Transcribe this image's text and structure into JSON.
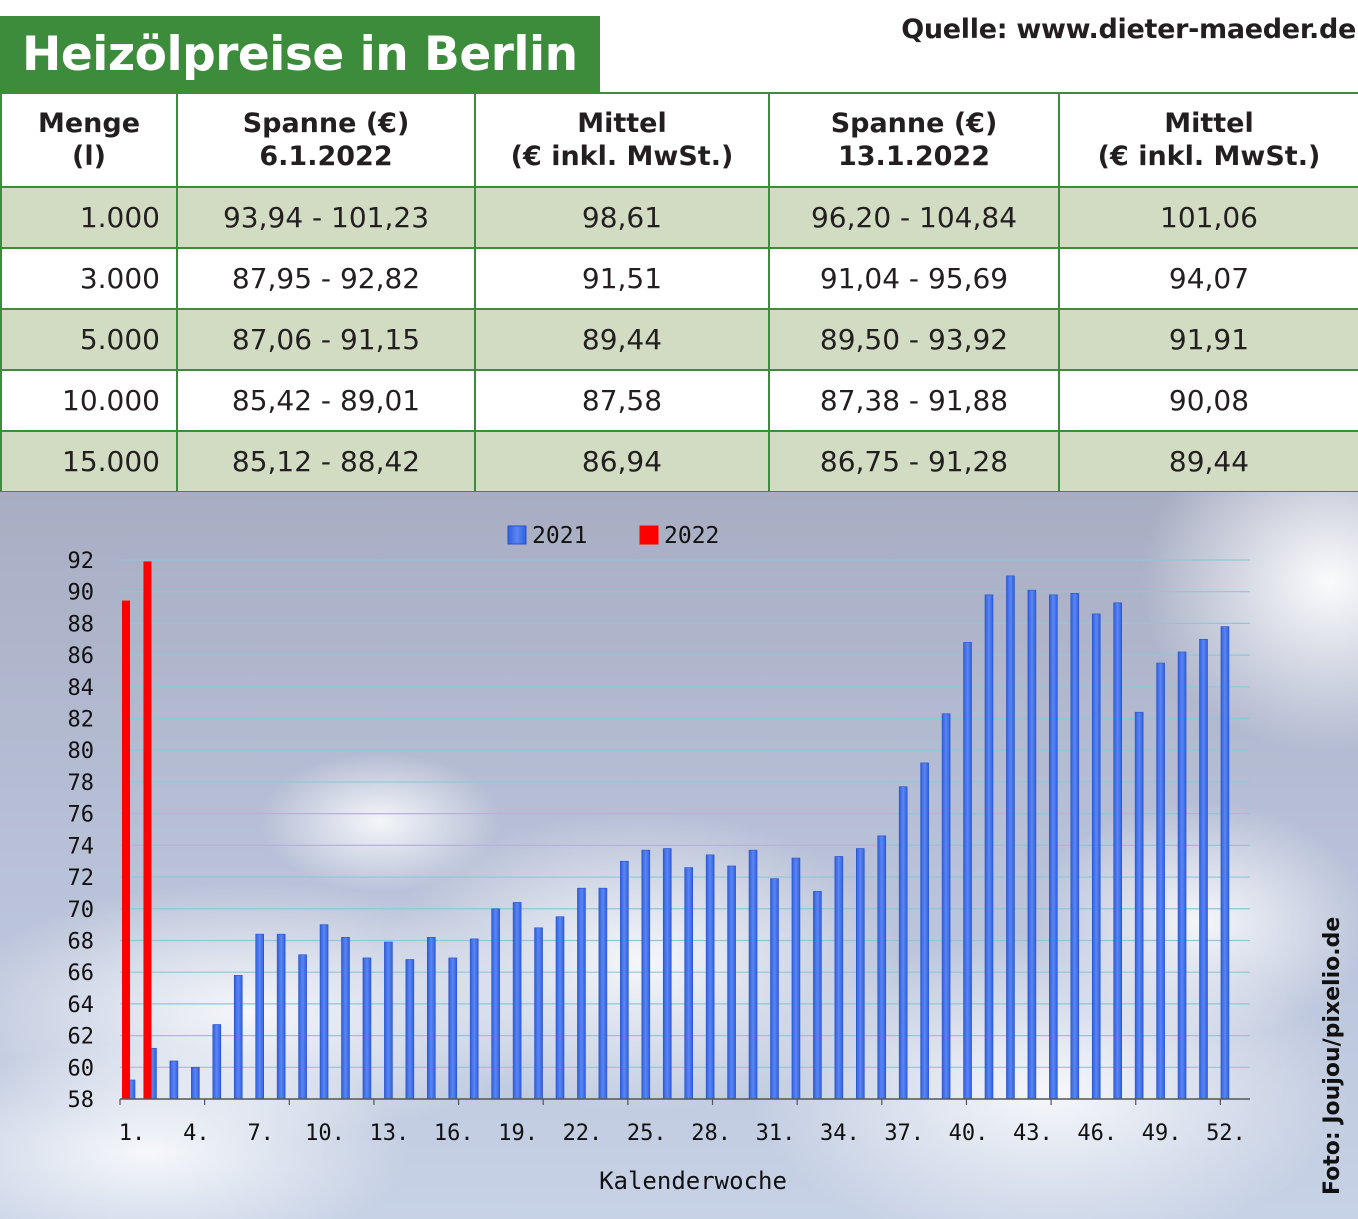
{
  "header": {
    "title": "Heizölpreise in Berlin",
    "source": "Quelle: www.dieter-maeder.de"
  },
  "table": {
    "columns": [
      {
        "line1": "Menge",
        "line2": "(l)"
      },
      {
        "line1": "Spanne (€)",
        "line2": "6.1.2022"
      },
      {
        "line1": "Mittel",
        "line2": "(€ inkl. MwSt.)"
      },
      {
        "line1": "Spanne (€)",
        "line2": "13.1.2022"
      },
      {
        "line1": "Mittel",
        "line2": "(€ inkl. MwSt.)"
      }
    ],
    "rows": [
      [
        "1.000",
        "93,94 - 101,23",
        "98,61",
        "96,20 - 104,84",
        "101,06"
      ],
      [
        "3.000",
        "87,95 - 92,82",
        "91,51",
        "91,04 - 95,69",
        "94,07"
      ],
      [
        "5.000",
        "87,06 - 91,15",
        "89,44",
        "89,50 - 93,92",
        "91,91"
      ],
      [
        "10.000",
        "85,42 - 89,01",
        "87,58",
        "87,38 - 91,88",
        "90,08"
      ],
      [
        "15.000",
        "85,12 - 88,42",
        "86,94",
        "86,75 - 91,28",
        "89,44"
      ]
    ]
  },
  "chart_data": {
    "type": "bar",
    "xlabel": "Kalenderwoche",
    "ylabel": "",
    "ylim": [
      58,
      92
    ],
    "yticks": [
      58,
      60,
      62,
      64,
      66,
      68,
      70,
      72,
      74,
      76,
      78,
      80,
      82,
      84,
      86,
      88,
      90,
      92
    ],
    "xtick_labels": [
      "1.",
      "4.",
      "7.",
      "10.",
      "13.",
      "16.",
      "19.",
      "22.",
      "25.",
      "28.",
      "31.",
      "34.",
      "37.",
      "40.",
      "43.",
      "46.",
      "49.",
      "52."
    ],
    "xtick_weeks": [
      1,
      4,
      7,
      10,
      13,
      16,
      19,
      22,
      25,
      28,
      31,
      34,
      37,
      40,
      43,
      46,
      49,
      52
    ],
    "legend_position": "top-center",
    "grid": true,
    "series": [
      {
        "name": "2021",
        "color": "#3f6fe8",
        "weeks": [
          1,
          2,
          3,
          4,
          5,
          6,
          7,
          8,
          9,
          10,
          11,
          12,
          13,
          14,
          15,
          16,
          17,
          18,
          19,
          20,
          21,
          22,
          23,
          24,
          25,
          26,
          27,
          28,
          29,
          30,
          31,
          32,
          33,
          34,
          35,
          36,
          37,
          38,
          39,
          40,
          41,
          42,
          43,
          44,
          45,
          46,
          47,
          48,
          49,
          50,
          51,
          52
        ],
        "values": [
          59.2,
          61.2,
          60.4,
          60.0,
          62.7,
          65.8,
          68.4,
          68.4,
          67.1,
          69.0,
          68.2,
          66.9,
          67.9,
          66.8,
          68.2,
          66.9,
          68.1,
          70.0,
          70.4,
          68.8,
          69.5,
          71.3,
          71.3,
          73.0,
          73.7,
          73.8,
          72.6,
          73.4,
          72.7,
          73.7,
          71.9,
          73.2,
          71.1,
          73.3,
          73.8,
          74.6,
          77.7,
          79.2,
          82.3,
          86.8,
          89.8,
          91.0,
          90.1,
          89.8,
          89.9,
          88.6,
          89.3,
          82.4,
          85.5,
          86.2,
          87.0,
          87.8
        ]
      },
      {
        "name": "2022",
        "color": "#ff0000",
        "weeks": [
          1,
          2
        ],
        "values": [
          89.44,
          91.91
        ]
      }
    ]
  },
  "photo_credit": "Foto: Joujou/pixelio.de"
}
